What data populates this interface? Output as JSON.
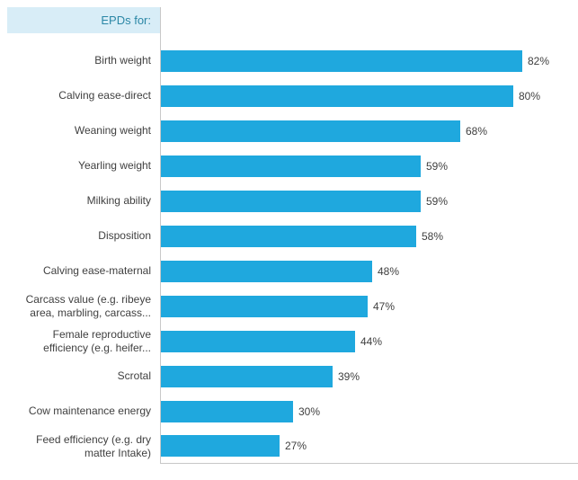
{
  "chart_data": {
    "type": "bar",
    "orientation": "horizontal",
    "title": "EPDs for:",
    "categories": [
      "Birth weight",
      "Calving ease-direct",
      "Weaning weight",
      "Yearling weight",
      "Milking ability",
      "Disposition",
      "Calving ease-maternal",
      "Carcass value (e.g. ribeye area, marbling, carcass...",
      "Female reproductive efficiency (e.g. heifer...",
      "Scrotal",
      "Cow maintenance energy",
      "Feed efficiency (e.g. dry matter Intake)"
    ],
    "values": [
      82,
      80,
      68,
      59,
      59,
      58,
      48,
      47,
      44,
      39,
      30,
      27
    ],
    "value_suffix": "%",
    "xlim": [
      0,
      100
    ],
    "grid": false,
    "legend": "none",
    "bar_color": "#1FA8DE",
    "axis_color": "#C8C8C8",
    "label_color": "#404040",
    "header_bg": "#D8EDF7",
    "header_text_color": "#2B87A6"
  }
}
